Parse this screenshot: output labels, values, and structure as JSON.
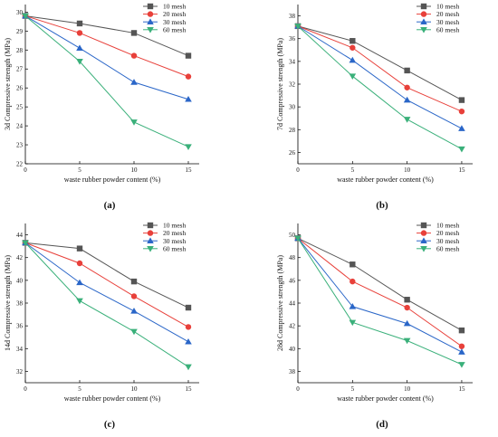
{
  "chart_data": [
    {
      "type": "line",
      "panel_label": "(a)",
      "xlabel": "waste rubber powder content (%)",
      "ylabel": "3d Compressive strength (MPa)",
      "x": [
        0,
        5,
        10,
        15
      ],
      "xlim": [
        0,
        16
      ],
      "xticks": [
        0,
        5,
        10,
        15
      ],
      "ylim": [
        22,
        30.4
      ],
      "yticks": [
        22,
        23,
        24,
        25,
        26,
        27,
        28,
        29,
        30
      ],
      "legend_position": "top-right",
      "series": [
        {
          "name": "10 mesh",
          "color": "#555555",
          "marker": "square",
          "values": [
            29.8,
            29.4,
            28.9,
            27.7
          ]
        },
        {
          "name": "20 mesh",
          "color": "#e8403a",
          "marker": "circle",
          "values": [
            29.8,
            28.9,
            27.7,
            26.6
          ]
        },
        {
          "name": "30 mesh",
          "color": "#2a66c8",
          "marker": "triangle-up",
          "values": [
            29.8,
            28.1,
            26.3,
            25.4
          ]
        },
        {
          "name": "60 mesh",
          "color": "#3ab07a",
          "marker": "triangle-down",
          "values": [
            29.8,
            27.4,
            24.2,
            22.9
          ]
        }
      ]
    },
    {
      "type": "line",
      "panel_label": "(b)",
      "xlabel": "waste rubber powder content (%)",
      "ylabel": "7d Compressive strength (MPa)",
      "x": [
        0,
        5,
        10,
        15
      ],
      "xlim": [
        0,
        16
      ],
      "xticks": [
        0,
        5,
        10,
        15
      ],
      "ylim": [
        25,
        39
      ],
      "yticks": [
        26,
        28,
        30,
        32,
        34,
        36,
        38
      ],
      "legend_position": "top-right",
      "series": [
        {
          "name": "10 mesh",
          "color": "#555555",
          "marker": "square",
          "values": [
            37.1,
            35.8,
            33.2,
            30.6
          ]
        },
        {
          "name": "20 mesh",
          "color": "#e8403a",
          "marker": "circle",
          "values": [
            37.1,
            35.2,
            31.7,
            29.6
          ]
        },
        {
          "name": "30 mesh",
          "color": "#2a66c8",
          "marker": "triangle-up",
          "values": [
            37.1,
            34.1,
            30.6,
            28.1
          ]
        },
        {
          "name": "60 mesh",
          "color": "#3ab07a",
          "marker": "triangle-down",
          "values": [
            37.1,
            32.7,
            28.9,
            26.3
          ]
        }
      ]
    },
    {
      "type": "line",
      "panel_label": "(c)",
      "xlabel": "waste rubber powder content (%)",
      "ylabel": "14d Compressive strength (MPa)",
      "x": [
        0,
        5,
        10,
        15
      ],
      "xlim": [
        0,
        16
      ],
      "xticks": [
        0,
        5,
        10,
        15
      ],
      "ylim": [
        31,
        45
      ],
      "yticks": [
        32,
        34,
        36,
        38,
        40,
        42,
        44
      ],
      "legend_position": "top-right",
      "series": [
        {
          "name": "10 mesh",
          "color": "#555555",
          "marker": "square",
          "values": [
            43.3,
            42.8,
            39.9,
            37.6
          ]
        },
        {
          "name": "20 mesh",
          "color": "#e8403a",
          "marker": "circle",
          "values": [
            43.3,
            41.5,
            38.6,
            35.9
          ]
        },
        {
          "name": "30 mesh",
          "color": "#2a66c8",
          "marker": "triangle-up",
          "values": [
            43.3,
            39.8,
            37.3,
            34.6
          ]
        },
        {
          "name": "60 mesh",
          "color": "#3ab07a",
          "marker": "triangle-down",
          "values": [
            43.3,
            38.2,
            35.5,
            32.4
          ]
        }
      ]
    },
    {
      "type": "line",
      "panel_label": "(d)",
      "xlabel": "waste rubber powder content (%)",
      "ylabel": "28d Compressive strength (MPa)",
      "x": [
        0,
        5,
        10,
        15
      ],
      "xlim": [
        0,
        16
      ],
      "xticks": [
        0,
        5,
        10,
        15
      ],
      "ylim": [
        37,
        51
      ],
      "yticks": [
        38,
        40,
        42,
        44,
        46,
        48,
        50
      ],
      "legend_position": "top-right",
      "series": [
        {
          "name": "10 mesh",
          "color": "#555555",
          "marker": "square",
          "values": [
            49.7,
            47.4,
            44.3,
            41.6
          ]
        },
        {
          "name": "20 mesh",
          "color": "#e8403a",
          "marker": "circle",
          "values": [
            49.7,
            45.9,
            43.6,
            40.2
          ]
        },
        {
          "name": "30 mesh",
          "color": "#2a66c8",
          "marker": "triangle-up",
          "values": [
            49.7,
            43.7,
            42.2,
            39.7
          ]
        },
        {
          "name": "60 mesh",
          "color": "#3ab07a",
          "marker": "triangle-down",
          "values": [
            49.7,
            42.3,
            40.7,
            38.6
          ]
        }
      ]
    }
  ]
}
